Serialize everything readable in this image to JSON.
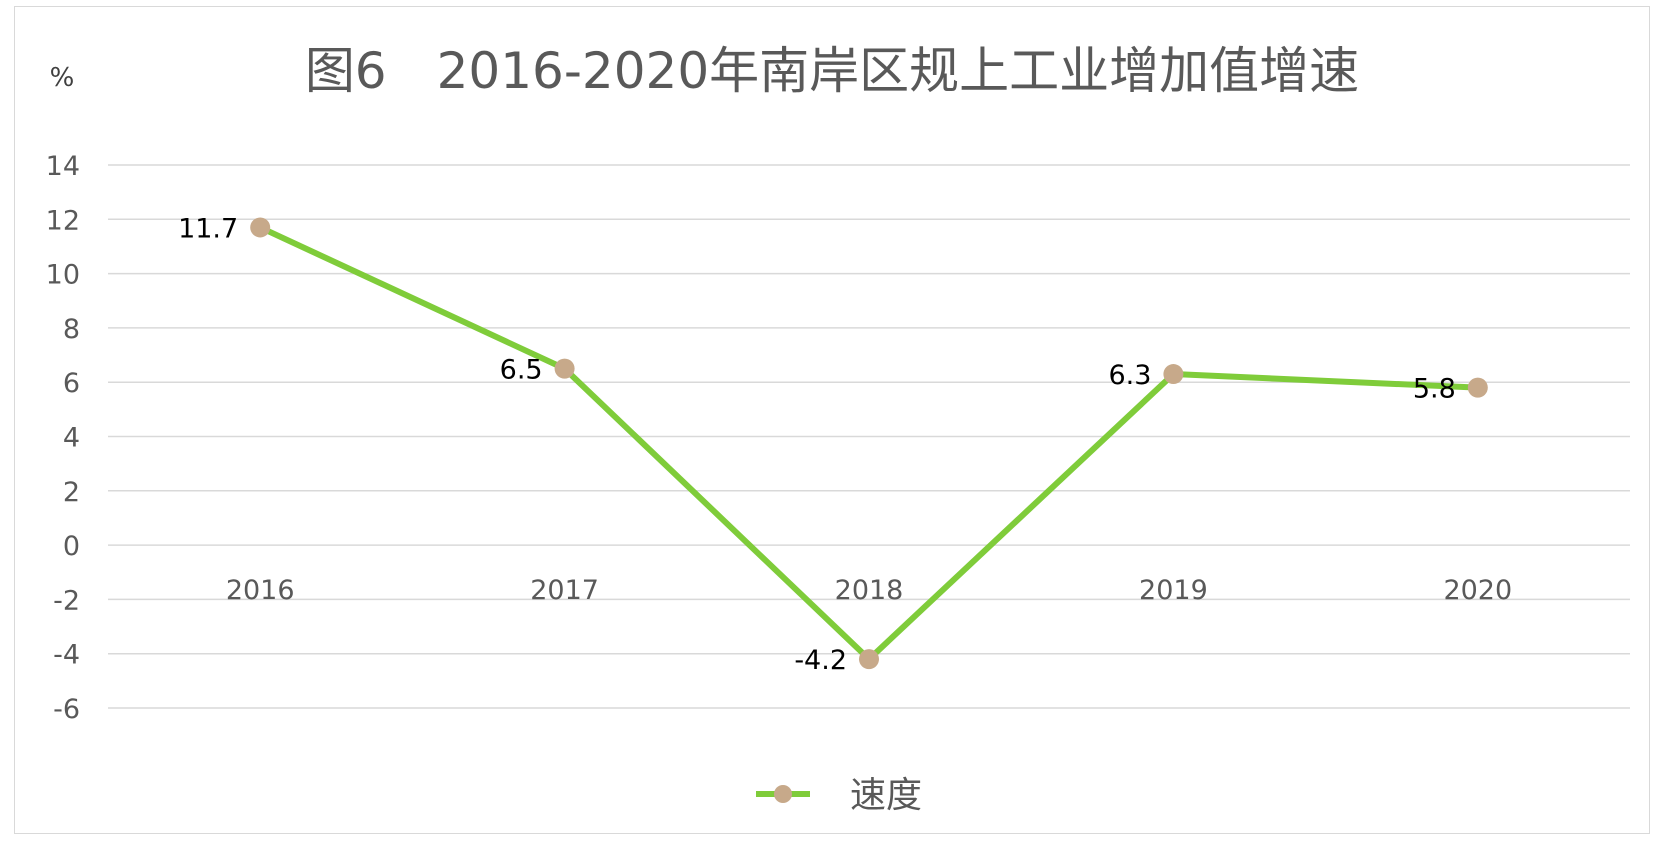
{
  "chart_data": {
    "type": "line",
    "title": "图6　2016-2020年南岸区规上工业增加值增速",
    "unit_label": "%",
    "categories": [
      "2016",
      "2017",
      "2018",
      "2019",
      "2020"
    ],
    "series": [
      {
        "name": "速度",
        "values": [
          11.7,
          6.5,
          -4.2,
          6.3,
          5.8
        ],
        "data_labels": [
          "11.7",
          "6.5",
          "-4.2",
          "6.3",
          "5.8"
        ]
      }
    ],
    "y_ticks": [
      "14",
      "12",
      "10",
      "8",
      "6",
      "4",
      "2",
      "0",
      "-2",
      "-4",
      "-6"
    ],
    "ylim": [
      -6,
      14
    ],
    "grid": true,
    "legend_position": "bottom",
    "colors": {
      "line": "#7fcc3a",
      "marker": "#c7a98a",
      "grid": "#d9d9d9"
    }
  }
}
